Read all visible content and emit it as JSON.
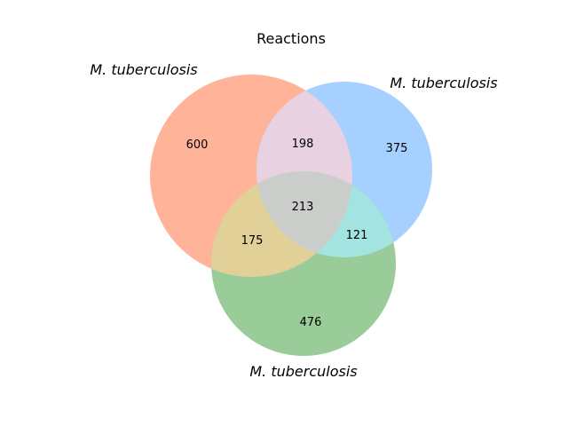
{
  "diagram": {
    "type": "venn3",
    "title": "Reactions",
    "sets": [
      {
        "label": "M. tuberculosis",
        "color": "#ffb499"
      },
      {
        "label": "M. tuberculosis",
        "color": "#a6d0ff"
      },
      {
        "label": "M. tuberculosis",
        "color": "#99cc99"
      }
    ],
    "regions": {
      "a_only": "600",
      "b_only": "375",
      "c_only": "476",
      "ab_only": "198",
      "ac_only": "175",
      "bc_only": "121",
      "abc": "213"
    },
    "overlap_colors": {
      "ab": "#e8d1e1",
      "ac": "#e1d199",
      "bc": "#a3e4e1",
      "abc": "#cbcdcb"
    }
  }
}
